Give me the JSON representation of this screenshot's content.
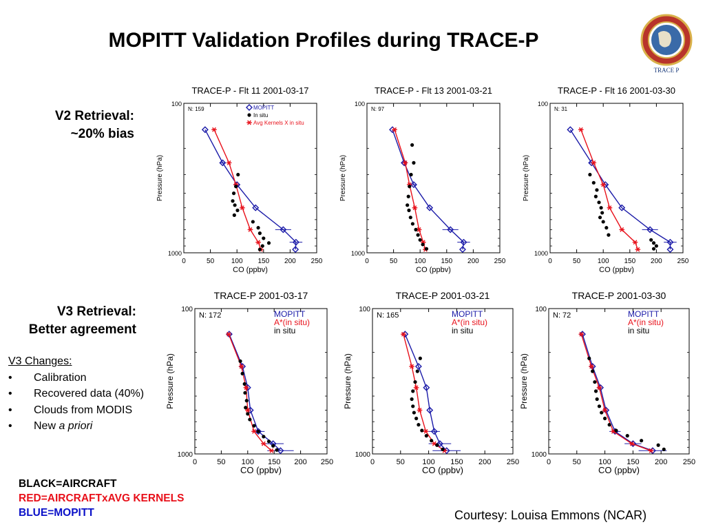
{
  "slide": {
    "title": "MOPITT Validation Profiles during TRACE-P",
    "v2_label": [
      "V2 Retrieval:",
      "~20% bias"
    ],
    "v3_label": [
      "V3 Retrieval:",
      "Better agreement"
    ],
    "v3_changes_heading": "V3 Changes:",
    "v3_changes": [
      "Calibration",
      "Recovered data (40%)",
      "Clouds from MODIS"
    ],
    "v3_changes_last_prefix": "New ",
    "v3_changes_last_italic": "a priori",
    "legend": [
      {
        "text": "BLACK=AIRCRAFT",
        "color": "#000000"
      },
      {
        "text": "RED=AIRCRAFTxAVG KERNELS",
        "color": "#e8101a"
      },
      {
        "text": "BLUE=MOPITT",
        "color": "#0a10c8"
      }
    ],
    "courtesy": "Courtesy: Louisa Emmons (NCAR)",
    "logo_text": "TRACE P",
    "colors": {
      "mopitt": "#1a1aa8",
      "avg_kernel": "#e8101a",
      "in_situ": "#000000"
    }
  },
  "chart_data": [
    {
      "type": "scatter",
      "title": "TRACE-P - Flt 11 2001-03-17",
      "xlabel": "CO (ppbv)",
      "ylabel": "Pressure (hPa)",
      "xlim": [
        0,
        250
      ],
      "ylim": [
        1000,
        100
      ],
      "yscale": "log",
      "xticks": [
        0,
        50,
        100,
        150,
        200,
        250
      ],
      "yticks": [
        100,
        1000
      ],
      "n_label": "N: 159",
      "legend": [
        "MOPITT",
        "In situ",
        "Avg Kernels X in situ"
      ],
      "series": [
        {
          "name": "MOPITT",
          "color": "#1a1aa8",
          "marker": "diamond",
          "x": [
            40,
            73,
            100,
            135,
            187,
            211,
            210
          ],
          "y": [
            150,
            250,
            350,
            500,
            700,
            850,
            950
          ],
          "xerr": [
            0,
            5,
            6,
            0,
            15,
            12,
            0
          ]
        },
        {
          "name": "Avg Kernels X in situ",
          "color": "#e8101a",
          "marker": "star",
          "x": [
            57,
            85,
            98,
            110,
            125,
            140,
            145
          ],
          "y": [
            150,
            250,
            350,
            500,
            700,
            850,
            950
          ]
        },
        {
          "name": "In situ",
          "color": "#000000",
          "marker": "dot",
          "x": [
            102,
            98,
            94,
            92,
            96,
            101,
            95,
            130,
            140,
            143,
            150,
            160,
            148,
            143
          ],
          "y": [
            300,
            360,
            400,
            450,
            480,
            520,
            560,
            620,
            680,
            740,
            800,
            860,
            900,
            950
          ]
        }
      ]
    },
    {
      "type": "scatter",
      "title": "TRACE-P - Flt 13 2001-03-21",
      "xlabel": "CO (ppbv)",
      "ylabel": "Pressure (hPa)",
      "xlim": [
        0,
        250
      ],
      "ylim": [
        1000,
        100
      ],
      "yscale": "log",
      "xticks": [
        0,
        50,
        100,
        150,
        200,
        250
      ],
      "yticks": [
        100,
        1000
      ],
      "n_label": "N: 97",
      "series": [
        {
          "name": "MOPITT",
          "color": "#1a1aa8",
          "marker": "diamond",
          "x": [
            48,
            70,
            88,
            118,
            157,
            182,
            180
          ],
          "y": [
            150,
            250,
            350,
            500,
            700,
            850,
            950
          ],
          "xerr": [
            0,
            5,
            6,
            0,
            15,
            12,
            0
          ]
        },
        {
          "name": "Avg Kernels X in situ",
          "color": "#e8101a",
          "marker": "star",
          "x": [
            52,
            72,
            80,
            90,
            98,
            106,
            110
          ],
          "y": [
            150,
            250,
            350,
            500,
            700,
            850,
            950
          ]
        },
        {
          "name": "In situ",
          "color": "#000000",
          "marker": "dot",
          "x": [
            85,
            88,
            83,
            80,
            78,
            76,
            79,
            82,
            86,
            92,
            96,
            100,
            105,
            112
          ],
          "y": [
            190,
            250,
            300,
            360,
            420,
            480,
            520,
            580,
            640,
            700,
            760,
            820,
            880,
            940
          ]
        }
      ]
    },
    {
      "type": "scatter",
      "title": "TRACE-P - Flt 16 2001-03-30",
      "xlabel": "CO (ppbv)",
      "ylabel": "Pressure (hPa)",
      "xlim": [
        0,
        250
      ],
      "ylim": [
        1000,
        100
      ],
      "yscale": "log",
      "xticks": [
        0,
        50,
        100,
        150,
        200,
        250
      ],
      "yticks": [
        100,
        1000
      ],
      "n_label": "N: 31",
      "series": [
        {
          "name": "MOPITT",
          "color": "#1a1aa8",
          "marker": "diamond",
          "x": [
            38,
            78,
            104,
            135,
            188,
            226,
            226
          ],
          "y": [
            150,
            250,
            350,
            500,
            700,
            850,
            950
          ],
          "xerr": [
            0,
            5,
            6,
            0,
            15,
            12,
            0
          ]
        },
        {
          "name": "Avg Kernels X in situ",
          "color": "#e8101a",
          "marker": "star",
          "x": [
            58,
            82,
            100,
            112,
            135,
            160,
            165
          ],
          "y": [
            150,
            250,
            350,
            500,
            700,
            850,
            950
          ]
        },
        {
          "name": "In situ",
          "color": "#000000",
          "marker": "dot",
          "x": [
            75,
            82,
            88,
            86,
            92,
            96,
            98,
            94,
            100,
            106,
            110,
            190,
            195,
            200,
            195
          ],
          "y": [
            300,
            340,
            380,
            420,
            460,
            500,
            540,
            580,
            620,
            680,
            760,
            820,
            860,
            900,
            940
          ]
        }
      ]
    },
    {
      "type": "scatter",
      "title": "TRACE-P 2001-03-17",
      "xlabel": "CO (ppbv)",
      "ylabel": "Pressure (hPa)",
      "xlim": [
        0,
        250
      ],
      "ylim": [
        1000,
        100
      ],
      "yscale": "log",
      "xticks": [
        0,
        50,
        100,
        150,
        200,
        250
      ],
      "yticks": [
        100,
        1000
      ],
      "n_label": "N: 172",
      "legend": [
        "MOPITT",
        "A*(in situ)",
        "in situ"
      ],
      "series": [
        {
          "name": "MOPITT",
          "color": "#1a1aa8",
          "marker": "diamond",
          "x": [
            65,
            90,
            100,
            105,
            120,
            148,
            162
          ],
          "y": [
            150,
            250,
            350,
            500,
            700,
            850,
            950
          ],
          "xerr": [
            0,
            0,
            0,
            0,
            12,
            20,
            25
          ]
        },
        {
          "name": "A*(in situ)",
          "color": "#e8101a",
          "marker": "star",
          "x": [
            64,
            88,
            97,
            100,
            112,
            130,
            145
          ],
          "y": [
            150,
            250,
            350,
            500,
            700,
            850,
            950
          ]
        },
        {
          "name": "in situ",
          "color": "#000000",
          "marker": "dot",
          "x": [
            86,
            90,
            94,
            95,
            98,
            96,
            100,
            104,
            112,
            120,
            130,
            140,
            148,
            155
          ],
          "y": [
            230,
            280,
            330,
            380,
            430,
            480,
            530,
            580,
            640,
            700,
            760,
            820,
            880,
            940
          ]
        }
      ]
    },
    {
      "type": "scatter",
      "title": "TRACE-P 2001-03-21",
      "xlabel": "CO (ppbv)",
      "ylabel": "Pressure (hPa)",
      "xlim": [
        0,
        250
      ],
      "ylim": [
        1000,
        100
      ],
      "yscale": "log",
      "xticks": [
        0,
        50,
        100,
        150,
        200,
        250
      ],
      "yticks": [
        100,
        1000
      ],
      "n_label": "N: 165",
      "legend": [
        "MOPITT",
        "A*(in situ)",
        "in situ"
      ],
      "series": [
        {
          "name": "MOPITT",
          "color": "#1a1aa8",
          "marker": "diamond",
          "x": [
            58,
            82,
            96,
            102,
            110,
            120,
            132
          ],
          "y": [
            150,
            250,
            350,
            500,
            700,
            850,
            950
          ],
          "xerr": [
            0,
            0,
            0,
            0,
            10,
            20,
            25
          ]
        },
        {
          "name": "A*(in situ)",
          "color": "#e8101a",
          "marker": "star",
          "x": [
            55,
            70,
            78,
            84,
            95,
            110,
            128
          ],
          "y": [
            150,
            250,
            350,
            500,
            700,
            850,
            950
          ]
        },
        {
          "name": "in situ",
          "color": "#000000",
          "marker": "dot",
          "x": [
            85,
            80,
            76,
            72,
            70,
            72,
            74,
            78,
            82,
            88,
            96,
            105,
            115,
            125
          ],
          "y": [
            220,
            270,
            320,
            370,
            420,
            470,
            520,
            570,
            630,
            690,
            750,
            810,
            870,
            930
          ]
        }
      ]
    },
    {
      "type": "scatter",
      "title": "TRACE-P 2001-03-30",
      "xlabel": "CO (ppbv)",
      "ylabel": "Pressure (hPa)",
      "xlim": [
        0,
        250
      ],
      "ylim": [
        1000,
        100
      ],
      "yscale": "log",
      "xticks": [
        0,
        50,
        100,
        150,
        200,
        250
      ],
      "yticks": [
        100,
        1000
      ],
      "n_label": "N: 72",
      "legend": [
        "MOPITT",
        "A*(in situ)",
        "in situ"
      ],
      "series": [
        {
          "name": "MOPITT",
          "color": "#1a1aa8",
          "marker": "diamond",
          "x": [
            60,
            78,
            92,
            102,
            118,
            150,
            185
          ],
          "y": [
            150,
            250,
            350,
            500,
            700,
            850,
            950
          ],
          "xerr": [
            0,
            0,
            0,
            0,
            10,
            15,
            25
          ]
        },
        {
          "name": "A*(in situ)",
          "color": "#e8101a",
          "marker": "star",
          "x": [
            58,
            76,
            90,
            100,
            115,
            148,
            182
          ],
          "y": [
            150,
            250,
            350,
            500,
            700,
            850,
            950
          ]
        },
        {
          "name": "in situ",
          "color": "#000000",
          "marker": "dot",
          "x": [
            72,
            78,
            82,
            84,
            86,
            90,
            94,
            100,
            108,
            120,
            140,
            165,
            195,
            205
          ],
          "y": [
            220,
            270,
            320,
            370,
            420,
            470,
            520,
            570,
            630,
            690,
            750,
            810,
            870,
            930
          ]
        }
      ]
    }
  ]
}
